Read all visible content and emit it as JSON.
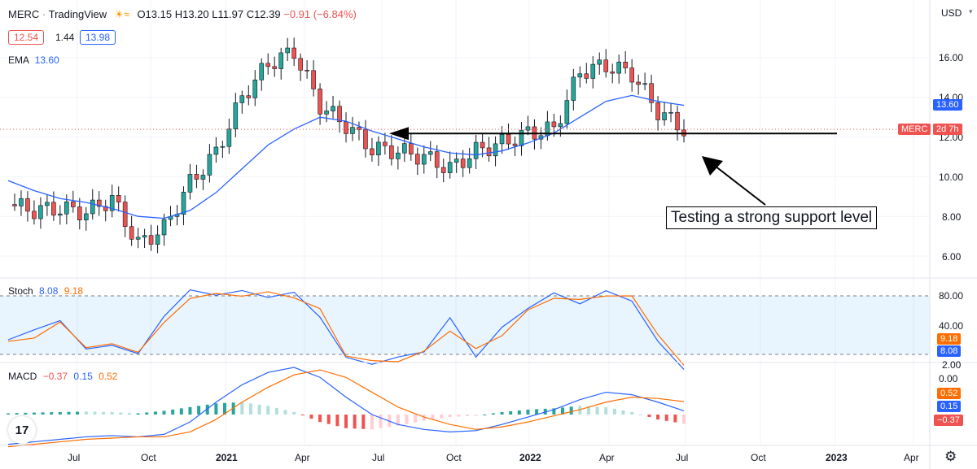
{
  "header": {
    "symbol": "MERC",
    "separator": "·",
    "source": "TradingView",
    "open": "O13.15",
    "high": "H13.20",
    "low": "L11.97",
    "close": "C12.39",
    "change": "−0.91 (−6.84%)",
    "bid": "12.54",
    "spread": "1.44",
    "ask": "13.98",
    "ema_label": "EMA",
    "ema_value": "13.60"
  },
  "price_axis": {
    "currency": "USD",
    "ticks": [
      "16.00",
      "14.00",
      "12.00",
      "10.00",
      "8.00",
      "6.00"
    ],
    "ema_badge": "13.60",
    "symbol_badge": "MERC",
    "timer_badge": "2d 7h"
  },
  "stoch": {
    "label": "Stoch",
    "k": "8.08",
    "d": "9.18",
    "ticks": [
      "80.00",
      "40.00",
      "0.00"
    ],
    "k_badge": "8.08",
    "d_badge": "9.18"
  },
  "macd": {
    "label": "MACD",
    "hist": "−0.37",
    "macd": "0.15",
    "signal": "0.52",
    "ticks": [
      "2.00"
    ],
    "macd_badge": "0.15",
    "signal_badge": "0.52",
    "hist_badge": "−0.37"
  },
  "time_axis": [
    "Jul",
    "Oct",
    "2021",
    "Apr",
    "Jul",
    "Oct",
    "2022",
    "Apr",
    "Jul",
    "Oct",
    "2023",
    "Apr"
  ],
  "annotation": "Testing a strong support level",
  "logo_text": "17",
  "colors": {
    "up": "#26a69a",
    "down": "#ef5350",
    "ema": "#2962ff",
    "stoch_d": "#ff6d00",
    "axis_bg": "#ffffff"
  },
  "chart_data": [
    {
      "type": "candlestick",
      "title": "MERC",
      "ylabel": "USD",
      "ylim": [
        5.0,
        17.3
      ],
      "x": [
        "2020-05",
        "2020-06",
        "2020-07",
        "2020-08",
        "2020-09",
        "2020-10",
        "2020-11",
        "2020-12",
        "2021-01",
        "2021-02",
        "2021-03",
        "2021-04",
        "2021-05",
        "2021-06",
        "2021-07",
        "2021-08",
        "2021-09",
        "2021-10",
        "2021-11",
        "2021-12",
        "2022-01",
        "2022-02",
        "2022-03",
        "2022-04",
        "2022-05",
        "2022-06",
        "2022-07"
      ],
      "series": [
        {
          "name": "MERC",
          "close": [
            8.6,
            8.3,
            8.4,
            8.2,
            8.9,
            6.6,
            7.4,
            9.7,
            11.2,
            14.0,
            15.7,
            16.3,
            13.6,
            12.6,
            11.4,
            11.3,
            11.0,
            10.4,
            11.3,
            11.7,
            12.2,
            12.4,
            15.3,
            15.6,
            15.2,
            13.3,
            12.39
          ]
        }
      ],
      "ema": [
        9.8,
        9.3,
        8.9,
        8.7,
        8.4,
        8.0,
        7.9,
        8.3,
        9.2,
        10.4,
        11.6,
        12.4,
        13.0,
        12.8,
        12.3,
        11.9,
        11.5,
        11.2,
        11.1,
        11.3,
        11.7,
        12.2,
        13.0,
        13.8,
        14.1,
        13.8,
        13.6
      ],
      "annotations": [
        "Testing a strong support level"
      ]
    },
    {
      "type": "line",
      "title": "Stoch",
      "ylim": [
        0,
        100
      ],
      "series": [
        {
          "name": "K",
          "values": [
            35,
            45,
            55,
            25,
            30,
            20,
            60,
            85,
            82,
            84,
            80,
            82,
            60,
            15,
            12,
            15,
            25,
            55,
            20,
            45,
            70,
            80,
            75,
            82,
            78,
            30,
            8.08
          ]
        },
        {
          "name": "D",
          "values": [
            30,
            40,
            50,
            30,
            28,
            25,
            50,
            80,
            80,
            82,
            82,
            80,
            65,
            20,
            12,
            14,
            22,
            45,
            25,
            40,
            65,
            78,
            76,
            80,
            80,
            40,
            9.18
          ]
        }
      ]
    },
    {
      "type": "bar",
      "title": "MACD",
      "ylim": [
        -1.5,
        2.2
      ],
      "x": [
        "2020-05",
        "2020-06",
        "2020-07",
        "2020-08",
        "2020-09",
        "2020-10",
        "2020-11",
        "2020-12",
        "2021-01",
        "2021-02",
        "2021-03",
        "2021-04",
        "2021-05",
        "2021-06",
        "2021-07",
        "2021-08",
        "2021-09",
        "2021-10",
        "2021-11",
        "2021-12",
        "2022-01",
        "2022-02",
        "2022-03",
        "2022-04",
        "2022-05",
        "2022-06",
        "2022-07"
      ],
      "series": [
        {
          "name": "hist",
          "values": [
            0.05,
            0.08,
            0.1,
            0.12,
            0.1,
            0.05,
            0.15,
            0.3,
            0.45,
            0.5,
            0.35,
            0.1,
            -0.3,
            -0.55,
            -0.6,
            -0.45,
            -0.25,
            -0.1,
            -0.05,
            0.1,
            0.2,
            0.25,
            0.35,
            0.3,
            0.1,
            -0.2,
            -0.37
          ]
        },
        {
          "name": "MACD",
          "values": [
            -1.2,
            -1.1,
            -1.0,
            -0.9,
            -0.85,
            -0.9,
            -0.8,
            -0.3,
            0.5,
            1.2,
            1.7,
            1.9,
            1.5,
            0.7,
            0.0,
            -0.4,
            -0.6,
            -0.7,
            -0.65,
            -0.4,
            -0.1,
            0.2,
            0.6,
            0.9,
            0.8,
            0.5,
            0.15
          ]
        },
        {
          "name": "Signal",
          "values": [
            -1.3,
            -1.2,
            -1.1,
            -1.0,
            -0.95,
            -0.9,
            -0.9,
            -0.7,
            -0.2,
            0.5,
            1.1,
            1.6,
            1.8,
            1.5,
            0.9,
            0.3,
            -0.1,
            -0.4,
            -0.6,
            -0.5,
            -0.3,
            -0.05,
            0.2,
            0.5,
            0.7,
            0.65,
            0.52
          ]
        }
      ]
    }
  ]
}
